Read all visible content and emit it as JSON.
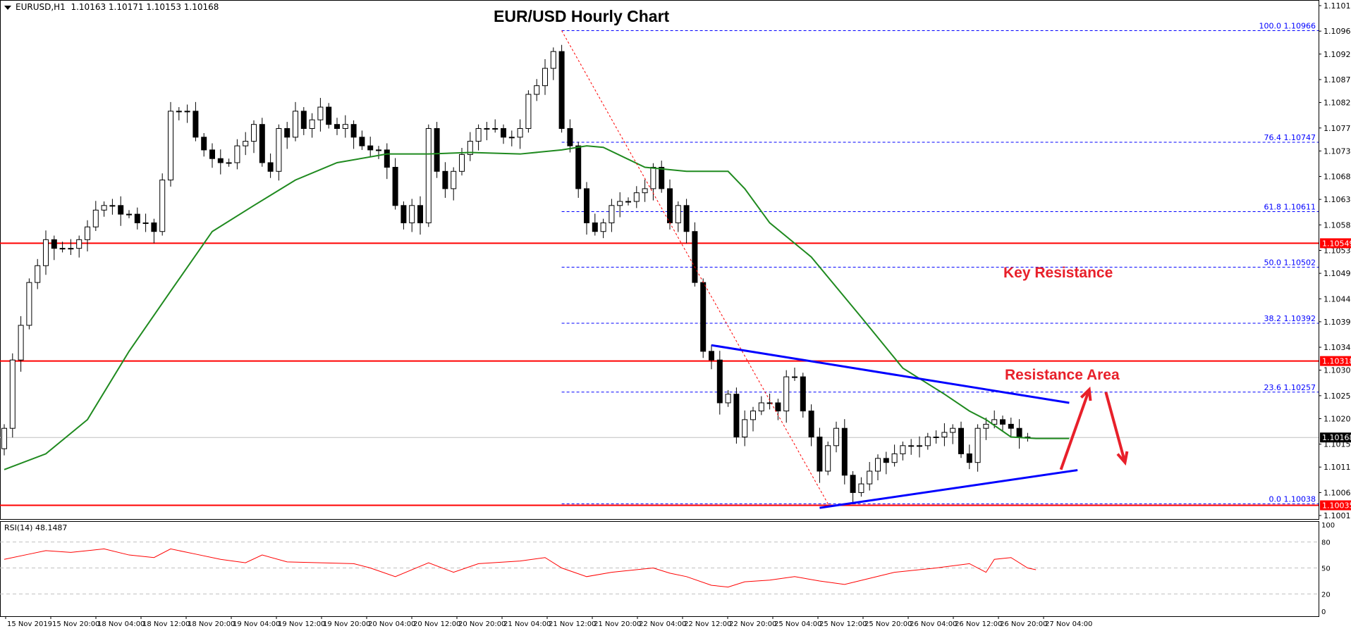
{
  "header": {
    "symbol": "EURUSD,H1",
    "ohlc": "1.10163 1.10171 1.10153 1.10168"
  },
  "chart_data": {
    "type": "candlestick",
    "title": "EUR/USD Hourly Chart",
    "symbol": "EURUSD",
    "timeframe": "H1",
    "ylim": [
      1.10015,
      1.11015
    ],
    "grid": false,
    "colors": {
      "bull_body": "#ffffff",
      "bear_body": "#000000",
      "ma": "#1f8a1f",
      "trendline": "#0000ff",
      "support_resistance": "#ff0000",
      "fib": "#0000ff",
      "rsi": "#ff0000",
      "annotation": "#e8202a"
    },
    "price_ticks": [
      "1.11015",
      "1.10965",
      "1.10920",
      "1.10870",
      "1.10825",
      "1.10775",
      "1.10730",
      "1.10680",
      "1.10635",
      "1.10585",
      "1.10535",
      "1.10490",
      "1.10440",
      "1.10395",
      "1.10345",
      "1.10300",
      "1.10250",
      "1.10205",
      "1.10155",
      "1.10110",
      "1.10060",
      "1.10015"
    ],
    "time_ticks": [
      "15 Nov 2019",
      "15 Nov 20:00",
      "18 Nov 04:00",
      "18 Nov 12:00",
      "18 Nov 20:00",
      "19 Nov 04:00",
      "19 Nov 12:00",
      "19 Nov 20:00",
      "20 Nov 04:00",
      "20 Nov 12:00",
      "20 Nov 20:00",
      "21 Nov 04:00",
      "21 Nov 12:00",
      "21 Nov 20:00",
      "22 Nov 04:00",
      "22 Nov 12:00",
      "22 Nov 20:00",
      "25 Nov 04:00",
      "25 Nov 12:00",
      "25 Nov 20:00",
      "26 Nov 04:00",
      "26 Nov 12:00",
      "26 Nov 20:00",
      "27 Nov 04:00"
    ],
    "closes": [
      1.10186,
      1.1032,
      1.10388,
      1.10472,
      1.10505,
      1.10556,
      1.10539,
      1.10539,
      1.10539,
      1.10556,
      1.10581,
      1.10614,
      1.10623,
      1.10623,
      1.10606,
      1.10606,
      1.10589,
      1.10589,
      1.10572,
      1.10673,
      1.10808,
      1.10808,
      1.10808,
      1.10757,
      1.10732,
      1.10715,
      1.10707,
      1.10707,
      1.1074,
      1.10749,
      1.10782,
      1.10707,
      1.1069,
      1.10774,
      1.10757,
      1.10808,
      1.10774,
      1.10791,
      1.10816,
      1.10782,
      1.10774,
      1.10782,
      1.10757,
      1.1074,
      1.10732,
      1.10732,
      1.10698,
      1.10623,
      1.10589,
      1.10623,
      1.10589,
      1.10774,
      1.1069,
      1.10656,
      1.1069,
      1.10723,
      1.10749,
      1.10774,
      1.10774,
      1.10774,
      1.10757,
      1.10757,
      1.10774,
      1.10841,
      1.10858,
      1.10892,
      1.10925,
      1.10774,
      1.1074,
      1.10656,
      1.10589,
      1.10572,
      1.10589,
      1.10623,
      1.10631,
      1.10631,
      1.10648,
      1.10656,
      1.10698,
      1.10656,
      1.10589,
      1.10623,
      1.10572,
      1.10472,
      1.10337,
      1.1032,
      1.10236,
      1.10253,
      1.10169,
      1.10203,
      1.1022,
      1.10236,
      1.10236,
      1.1022,
      1.10287,
      1.10287,
      1.1022,
      1.10169,
      1.10102,
      1.10152,
      1.10186,
      1.10094,
      1.1006,
      1.10077,
      1.10102,
      1.10127,
      1.10119,
      1.10136,
      1.10152,
      1.10152,
      1.10152,
      1.10169,
      1.10169,
      1.10178,
      1.10186,
      1.10136,
      1.10119,
      1.10186,
      1.10194,
      1.10203,
      1.10194,
      1.10186,
      1.10169,
      1.10168
    ],
    "moving_average": [
      [
        0,
        1.10105
      ],
      [
        5,
        1.10136
      ],
      [
        10,
        1.10203
      ],
      [
        15,
        1.10337
      ],
      [
        20,
        1.10455
      ],
      [
        25,
        1.10572
      ],
      [
        30,
        1.10623
      ],
      [
        35,
        1.10673
      ],
      [
        40,
        1.10707
      ],
      [
        46,
        1.10724
      ],
      [
        51,
        1.10724
      ],
      [
        56,
        1.10727
      ],
      [
        62,
        1.10724
      ],
      [
        67,
        1.10732
      ],
      [
        70,
        1.1074
      ],
      [
        72,
        1.10737
      ],
      [
        77,
        1.10698
      ],
      [
        82,
        1.1069
      ],
      [
        87,
        1.1069
      ],
      [
        89,
        1.10656
      ],
      [
        92,
        1.10589
      ],
      [
        97,
        1.10522
      ],
      [
        103,
        1.10404
      ],
      [
        108,
        1.10304
      ],
      [
        113,
        1.10253
      ],
      [
        116,
        1.1022
      ],
      [
        118,
        1.10203
      ],
      [
        121,
        1.10169
      ],
      [
        124,
        1.10166
      ],
      [
        128,
        1.10166
      ]
    ],
    "current_price": "1.10168",
    "horizontal_levels": [
      {
        "price": "1.10549",
        "label": "1.10549"
      },
      {
        "price": "1.10318",
        "label": "1.10318"
      },
      {
        "price": "1.10035",
        "label": "1.10035"
      }
    ],
    "fibonacci": [
      {
        "level": "100.0",
        "price": "1.10966"
      },
      {
        "level": "76.4",
        "price": "1.10747"
      },
      {
        "level": "61.8",
        "price": "1.10611"
      },
      {
        "level": "50.0",
        "price": "1.10502"
      },
      {
        "level": "38.2",
        "price": "1.10392"
      },
      {
        "level": "23.6",
        "price": "1.10257"
      },
      {
        "level": "0.0",
        "price": "1.10038"
      }
    ],
    "fib_start_bar": 67,
    "fib_trend_line": [
      [
        67,
        1.10966
      ],
      [
        99,
        1.10038
      ]
    ],
    "trendlines": [
      [
        [
          85,
          1.10349
        ],
        [
          128,
          1.10236
        ]
      ],
      [
        [
          98,
          1.1003
        ],
        [
          129,
          1.10104
        ]
      ]
    ],
    "arrows": [
      {
        "from": [
          127,
          1.10105
        ],
        "to": [
          130.4,
          1.10262
        ]
      },
      {
        "from": [
          132.4,
          1.10257
        ],
        "to": [
          134.7,
          1.10119
        ]
      }
    ],
    "annotations": [
      {
        "text": "Key Resistance",
        "price": 1.1049
      },
      {
        "text": "Resistance Area",
        "price": 1.1029
      }
    ],
    "rsi": {
      "label": "RSI(14) 48.1487",
      "levels": [
        "100",
        "80",
        "50",
        "20",
        "0"
      ],
      "values": [
        [
          0,
          60
        ],
        [
          3,
          66
        ],
        [
          5,
          70
        ],
        [
          8,
          68
        ],
        [
          12,
          72
        ],
        [
          15,
          65
        ],
        [
          18,
          62
        ],
        [
          20,
          72
        ],
        [
          23,
          66
        ],
        [
          26,
          60
        ],
        [
          29,
          56
        ],
        [
          31,
          65
        ],
        [
          34,
          57
        ],
        [
          38,
          56
        ],
        [
          42,
          55
        ],
        [
          44,
          50
        ],
        [
          47,
          40
        ],
        [
          50,
          52
        ],
        [
          51,
          56
        ],
        [
          54,
          45
        ],
        [
          57,
          55
        ],
        [
          62,
          58
        ],
        [
          65,
          62
        ],
        [
          67,
          50
        ],
        [
          70,
          40
        ],
        [
          73,
          45
        ],
        [
          78,
          50
        ],
        [
          80,
          44
        ],
        [
          82,
          40
        ],
        [
          85,
          30
        ],
        [
          87,
          28
        ],
        [
          89,
          34
        ],
        [
          92,
          36
        ],
        [
          95,
          40
        ],
        [
          98,
          35
        ],
        [
          101,
          31
        ],
        [
          104,
          38
        ],
        [
          107,
          45
        ],
        [
          112,
          50
        ],
        [
          116,
          55
        ],
        [
          118,
          45
        ],
        [
          119,
          60
        ],
        [
          121,
          62
        ],
        [
          123,
          50
        ],
        [
          124,
          48
        ]
      ]
    }
  }
}
